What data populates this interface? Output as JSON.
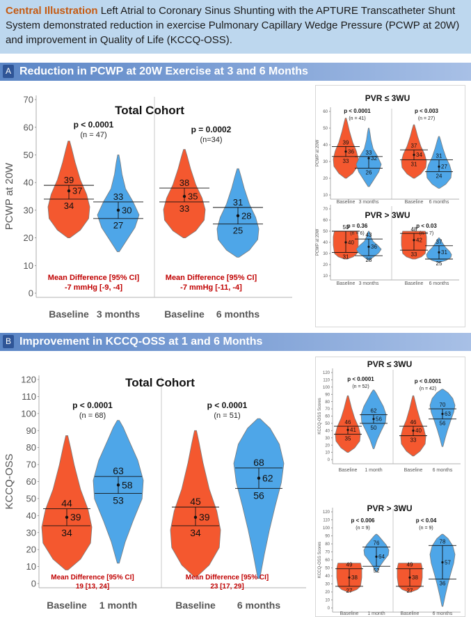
{
  "header": {
    "lead": "Central Illustration",
    "text": "Left Atrial to Coronary Sinus Shunting with the APTURE Transcatheter Shunt System demonstrated reduction in exercise Pulmonary Capillary Wedge Pressure (PCWP at 20W) and improvement in Quality of Life (KCCQ-OSS)."
  },
  "section_a": {
    "letter": "A",
    "title": "Reduction in PCWP at 20W Exercise at 3 and 6 Months"
  },
  "section_b": {
    "letter": "B",
    "title": "Improvement in KCCQ-OSS at 1 and 6 Months"
  },
  "colors": {
    "baseline": "#f4582f",
    "followup": "#4ea6e8",
    "accent_red": "#c00000"
  },
  "chart_data": [
    {
      "id": "A-total",
      "type": "violin",
      "title": "Total Cohort",
      "ylabel": "PCWP at 20W",
      "ylim": [
        0,
        70
      ],
      "yticks": [
        0,
        10,
        20,
        30,
        40,
        50,
        60,
        70
      ],
      "groups": [
        {
          "label": "Baseline",
          "color": "baseline",
          "min": 20,
          "max": 55,
          "q1": 34,
          "median": 37,
          "q3": 39,
          "shape": "bottomheavy"
        },
        {
          "label": "3 months",
          "color": "followup",
          "min": 15,
          "max": 50,
          "q1": 27,
          "median": 30,
          "q3": 33,
          "shape": "topnarrow"
        },
        {
          "label": "Baseline",
          "color": "baseline",
          "min": 20,
          "max": 52,
          "q1": 33,
          "median": 35,
          "q3": 38,
          "shape": "bottomheavy"
        },
        {
          "label": "6 months",
          "color": "followup",
          "min": 13,
          "max": 45,
          "q1": 25,
          "median": 28,
          "q3": 31,
          "shape": "bottomheavy"
        }
      ],
      "annotations": [
        {
          "p": "p < 0.0001",
          "n": "(n = 47)"
        },
        {
          "p": "p = 0.0002",
          "n": "(n=34)"
        }
      ],
      "diffs": [
        {
          "label": "Mean Difference [95% CI]",
          "value": "-7 mmHg [-9, -4]"
        },
        {
          "label": "Mean Difference [95% CI]",
          "value": "-7 mmHg [-11, -4]"
        }
      ]
    },
    {
      "id": "A-pvr-low",
      "type": "violin",
      "title": "PVR ≤ 3WU",
      "ylabel": "PCWP at 20W",
      "ylim": [
        10,
        60
      ],
      "yticks": [
        10,
        20,
        30,
        40,
        50,
        60
      ],
      "groups": [
        {
          "label": "Baseline",
          "color": "baseline",
          "min": 20,
          "max": 56,
          "q1": 33,
          "median": 36,
          "q3": 39,
          "shape": "bottomheavy"
        },
        {
          "label": "3 months",
          "color": "followup",
          "min": 15,
          "max": 50,
          "q1": 26,
          "median": 32,
          "q3": 33,
          "shape": "topnarrow"
        },
        {
          "label": "Baseline",
          "color": "baseline",
          "min": 20,
          "max": 52,
          "q1": 31,
          "median": 34,
          "q3": 37,
          "shape": "bottomheavy"
        },
        {
          "label": "6 months",
          "color": "followup",
          "min": 14,
          "max": 45,
          "q1": 24,
          "median": 27,
          "q3": 31,
          "shape": "bottomheavy"
        }
      ],
      "annotations": [
        {
          "p": "p < 0.0001",
          "n": "(n = 41)"
        },
        {
          "p": "p < 0.003",
          "n": "(n = 27)"
        }
      ]
    },
    {
      "id": "A-pvr-high",
      "type": "violin",
      "title": "PVR > 3WU",
      "ylabel": "PCWP at 20W",
      "ylim": [
        10,
        70
      ],
      "yticks": [
        10,
        20,
        30,
        40,
        50,
        60,
        70
      ],
      "groups": [
        {
          "label": "Baseline",
          "color": "baseline",
          "min": 25,
          "max": 50,
          "q1": 31,
          "median": 40,
          "q3": 50,
          "shape": "tophat"
        },
        {
          "label": "3 months",
          "color": "followup",
          "min": 24,
          "max": 50,
          "q1": 28,
          "median": 36,
          "q3": 43,
          "shape": "topnarrow"
        },
        {
          "label": "Baseline",
          "color": "baseline",
          "min": 25,
          "max": 50,
          "q1": 33,
          "median": 42,
          "q3": 48,
          "shape": "tophat"
        },
        {
          "label": "6 months",
          "color": "followup",
          "min": 22,
          "max": 44,
          "q1": 25,
          "median": 31,
          "q3": 37,
          "shape": "bottomheavy"
        }
      ],
      "annotations": [
        {
          "p": "p = 0.36",
          "n": "(n = 6)"
        },
        {
          "p": "p < 0.03",
          "n": "(n = 7)"
        }
      ]
    },
    {
      "id": "B-total",
      "type": "violin",
      "title": "Total Cohort",
      "ylabel": "KCCQ-OSS",
      "ylim": [
        0,
        120
      ],
      "yticks": [
        0,
        5,
        10,
        15,
        20,
        25,
        30,
        35,
        40,
        45,
        50,
        55,
        60,
        65,
        70,
        75,
        80,
        85,
        90,
        95,
        100,
        105,
        110,
        115,
        120
      ],
      "groups": [
        {
          "label": "Baseline",
          "color": "baseline",
          "min": 8,
          "max": 87,
          "q1": 34,
          "median": 39,
          "q3": 44,
          "shape": "bottomheavy"
        },
        {
          "label": "1 month",
          "color": "followup",
          "min": 12,
          "max": 96,
          "q1": 53,
          "median": 58,
          "q3": 63,
          "shape": "midheavy"
        },
        {
          "label": "Baseline",
          "color": "baseline",
          "min": 4,
          "max": 90,
          "q1": 34,
          "median": 39,
          "q3": 45,
          "shape": "bottomheavy"
        },
        {
          "label": "6 months",
          "color": "followup",
          "min": 3,
          "max": 97,
          "q1": 56,
          "median": 62,
          "q3": 68,
          "shape": "topheavy"
        }
      ],
      "annotations": [
        {
          "p": "p < 0.0001",
          "n": "(n = 68)"
        },
        {
          "p": "p < 0.0001",
          "n": "(n = 51)"
        }
      ],
      "diffs": [
        {
          "label": "Mean Difference [95% CI]",
          "value": "19 [13, 24]"
        },
        {
          "label": "Mean Difference [95% CI]",
          "value": "23 [17, 29]"
        }
      ]
    },
    {
      "id": "B-pvr-low",
      "type": "violin",
      "title": "PVR ≤ 3WU",
      "ylabel": "KCCQ-OSS Scores",
      "ylim": [
        0,
        120
      ],
      "yticks": [
        0,
        10,
        20,
        30,
        40,
        50,
        60,
        70,
        80,
        90,
        100,
        110,
        120
      ],
      "groups": [
        {
          "label": "Baseline",
          "color": "baseline",
          "min": 10,
          "max": 88,
          "q1": 35,
          "median": 41,
          "q3": 46,
          "shape": "bottomheavy"
        },
        {
          "label": "1 month",
          "color": "followup",
          "min": 15,
          "max": 96,
          "q1": 50,
          "median": 56,
          "q3": 62,
          "shape": "midheavy"
        },
        {
          "label": "Baseline",
          "color": "baseline",
          "min": 5,
          "max": 88,
          "q1": 33,
          "median": 40,
          "q3": 46,
          "shape": "bottomheavy"
        },
        {
          "label": "6 months",
          "color": "followup",
          "min": 18,
          "max": 97,
          "q1": 56,
          "median": 63,
          "q3": 70,
          "shape": "topheavy"
        }
      ],
      "annotations": [
        {
          "p": "p < 0.0001",
          "n": "(n = 52)"
        },
        {
          "p": "p < 0.0001",
          "n": "(n = 42)"
        }
      ]
    },
    {
      "id": "B-pvr-high",
      "type": "violin",
      "title": "PVR > 3WU",
      "ylabel": "KCCQ-OSS Scores",
      "ylim": [
        0,
        120
      ],
      "yticks": [
        0,
        10,
        20,
        30,
        40,
        50,
        60,
        70,
        80,
        90,
        100,
        110,
        120
      ],
      "groups": [
        {
          "label": "Baseline",
          "color": "baseline",
          "min": 20,
          "max": 56,
          "q1": 27,
          "median": 38,
          "q3": 49,
          "shape": "tophat"
        },
        {
          "label": "1 month",
          "color": "followup",
          "min": 45,
          "max": 92,
          "q1": 52,
          "median": 64,
          "q3": 76,
          "shape": "midheavy"
        },
        {
          "label": "Baseline",
          "color": "baseline",
          "min": 20,
          "max": 56,
          "q1": 27,
          "median": 38,
          "q3": 49,
          "shape": "tophat"
        },
        {
          "label": "6 months",
          "color": "followup",
          "min": 2,
          "max": 92,
          "q1": 36,
          "median": 57,
          "q3": 78,
          "shape": "topheavy"
        }
      ],
      "annotations": [
        {
          "p": "p < 0.006",
          "n": "(n = 9)"
        },
        {
          "p": "p < 0.04",
          "n": "(n = 9)"
        }
      ]
    }
  ]
}
